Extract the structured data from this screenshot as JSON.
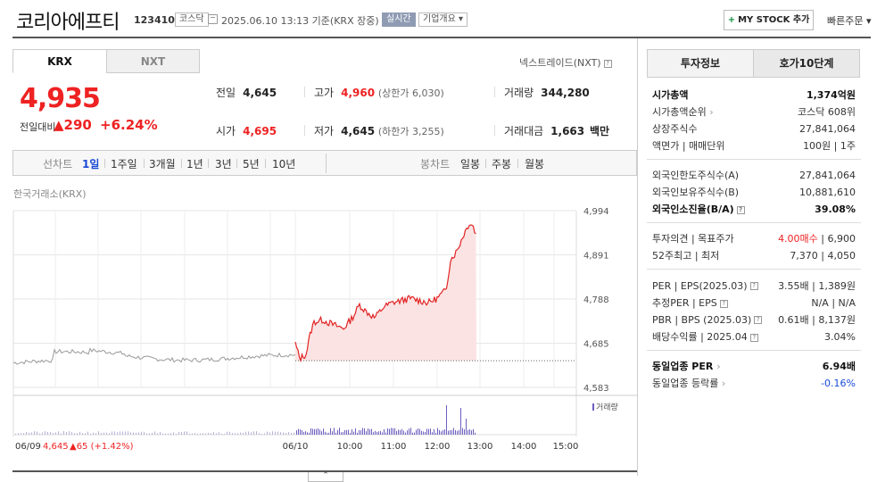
{
  "header": {
    "stock_name": "코리아에프티",
    "stock_code": "123410",
    "market_badge": "코스닥",
    "timestamp": "2025.06.10 13:13 기준(KRX 장중)",
    "live_badge": "실시간",
    "company_overview": "기업개요",
    "mystock_label": "MY STOCK 추가",
    "quick_order": "빠른주문"
  },
  "tabs": {
    "krx": "KRX",
    "nxt": "NXT",
    "nxt_link": "넥스트레이드(NXT)"
  },
  "price": {
    "current": "4,935",
    "change_label": "전일대비",
    "change_value": "▲290",
    "change_pct": "+6.24%"
  },
  "summary": {
    "prev_label": "전일",
    "prev_value": "4,645",
    "high_label": "고가",
    "high_value": "4,960",
    "high_sub": "(상한가 6,030)",
    "volume_label": "거래량",
    "volume_value": "344,280",
    "open_label": "시가",
    "open_value": "4,695",
    "low_label": "저가",
    "low_value": "4,645",
    "low_sub": "(하한가 3,255)",
    "amount_label": "거래대금",
    "amount_value": "1,663",
    "amount_unit": "백만"
  },
  "period_bar": {
    "line_label": "선차트",
    "line_items": [
      "1일",
      "1주일",
      "3개월",
      "1년",
      "3년",
      "5년",
      "10년"
    ],
    "candle_label": "봉차트",
    "candle_items": [
      "일봉",
      "주봉",
      "월봉"
    ]
  },
  "chart_source": "한국거래소(KRX)",
  "chart_data": {
    "type": "line",
    "y_ticks": [
      "4,994",
      "4,891",
      "4,788",
      "4,685",
      "4,583"
    ],
    "y_range": [
      4583,
      4994
    ],
    "prev_close": 4645,
    "prev_day_label": "06/09",
    "prev_day_summary": "4,645",
    "prev_day_change": "▲65 (+1.42%)",
    "x_ticks": [
      "06/10",
      "10:00",
      "11:00",
      "12:00",
      "13:00",
      "14:00",
      "15:00"
    ],
    "volume_legend": "거래량",
    "colors": {
      "up": "#e22222",
      "prev": "#999999",
      "fill": "#fbe3e3",
      "volume": "#6b5fbf"
    }
  },
  "right_panel": {
    "tab_info": "투자정보",
    "tab_orderbook": "호가10단계",
    "rows_a": [
      {
        "l": "시가총액",
        "r": "1,374억원"
      },
      {
        "l": "시가총액순위",
        "r": "코스닥 608위"
      },
      {
        "l": "상장주식수",
        "r": "27,841,064"
      },
      {
        "l": "액면가 | 매매단위",
        "r": "100원 | 1주"
      }
    ],
    "rows_b": [
      {
        "l": "외국인한도주식수(A)",
        "r": "27,841,064"
      },
      {
        "l": "외국인보유주식수(B)",
        "r": "10,881,610"
      },
      {
        "l": "외국인소진율(B/A)",
        "r": "39.08%"
      }
    ],
    "rows_c": [
      {
        "l": "투자의견 | 목표주가",
        "r1": "4.00매수",
        "r2": "| 6,900"
      },
      {
        "l": "52주최고 | 최저",
        "r": "7,370 | 4,050"
      }
    ],
    "rows_d": [
      {
        "l": "PER | EPS(2025.03)",
        "r": "3.55배 | 1,389원"
      },
      {
        "l": "추정PER | EPS",
        "r": "N/A | N/A"
      },
      {
        "l": "PBR | BPS (2025.03)",
        "r": "0.61배 | 8,137원"
      },
      {
        "l": "배당수익률 | 2025.04",
        "r": "3.04%"
      }
    ],
    "rows_e": [
      {
        "l": "동일업종 PER",
        "r": "6.94배"
      },
      {
        "l": "동일업종 등락률",
        "r": "-0.16%"
      }
    ]
  }
}
